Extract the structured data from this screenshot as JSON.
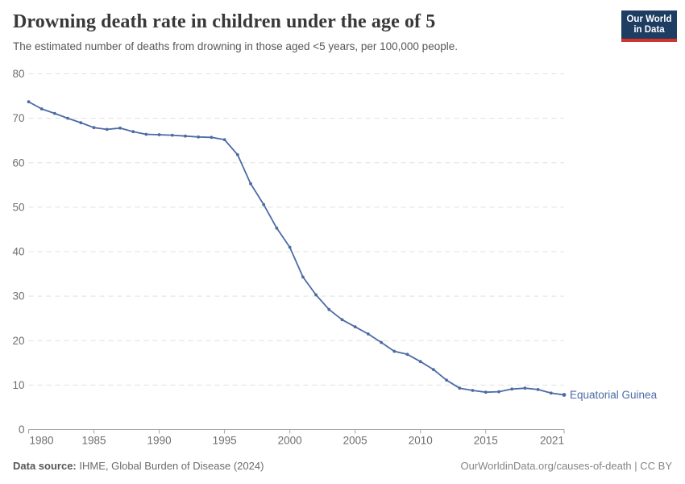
{
  "header": {
    "title": "Drowning death rate in children under the age of 5",
    "subtitle": "The estimated number of deaths from drowning in those aged <5 years, per 100,000 people.",
    "logo": {
      "line1": "Our World",
      "line2": "in Data",
      "bg_color": "#1d3d63",
      "accent_color": "#d0342c"
    }
  },
  "chart_data": {
    "type": "line",
    "title": "Drowning death rate in children under the age of 5",
    "xlabel": "",
    "ylabel": "",
    "xlim": [
      1980,
      2021
    ],
    "ylim": [
      0,
      80
    ],
    "x_ticks": [
      1980,
      1985,
      1990,
      1995,
      2000,
      2005,
      2010,
      2015,
      2021
    ],
    "y_ticks": [
      0,
      10,
      20,
      30,
      40,
      50,
      60,
      70,
      80
    ],
    "grid": "horizontal-dashed",
    "legend_position": "end-of-line-label",
    "series": [
      {
        "name": "Equatorial Guinea",
        "color": "#4c6ba5",
        "x": [
          1980,
          1981,
          1982,
          1983,
          1984,
          1985,
          1986,
          1987,
          1988,
          1989,
          1990,
          1991,
          1992,
          1993,
          1994,
          1995,
          1996,
          1997,
          1998,
          1999,
          2000,
          2001,
          2002,
          2003,
          2004,
          2005,
          2006,
          2007,
          2008,
          2009,
          2010,
          2011,
          2012,
          2013,
          2014,
          2015,
          2016,
          2017,
          2018,
          2019,
          2020,
          2021
        ],
        "values": [
          73.7,
          72.1,
          71.1,
          70.0,
          69.0,
          67.9,
          67.5,
          67.8,
          67.0,
          66.4,
          66.3,
          66.2,
          66.0,
          65.8,
          65.7,
          65.2,
          61.8,
          55.3,
          50.6,
          45.3,
          41.0,
          34.3,
          30.3,
          27.0,
          24.7,
          23.1,
          21.5,
          19.6,
          17.6,
          16.9,
          15.3,
          13.5,
          11.1,
          9.3,
          8.8,
          8.4,
          8.5,
          9.1,
          9.3,
          9.0,
          8.2,
          7.8
        ]
      }
    ]
  },
  "footer": {
    "source_label": "Data source:",
    "source_text": " IHME, Global Burden of Disease (2024)",
    "credit": "OurWorldinData.org/causes-of-death | CC BY"
  }
}
